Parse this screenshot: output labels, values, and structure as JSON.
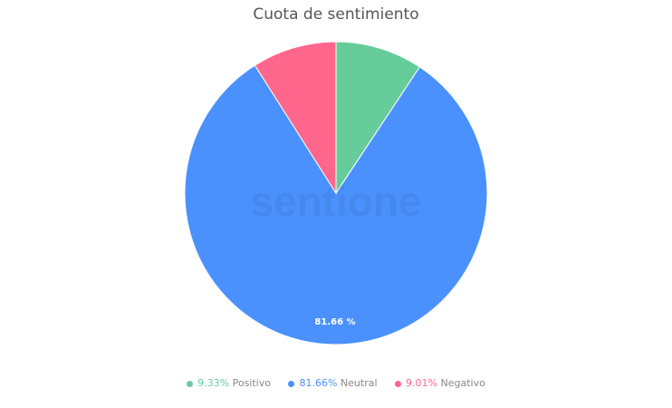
{
  "chart_data": {
    "type": "pie",
    "title": "Cuota de sentimiento",
    "categories": [
      "Positivo",
      "Neutral",
      "Negativo"
    ],
    "values": [
      9.33,
      81.66,
      9.01
    ],
    "value_labels": [
      "9.33%",
      "81.66%",
      "9.01%"
    ],
    "slice_label": "81.66 %",
    "colors": [
      "#66cc99",
      "#4b91fd",
      "#ff668c"
    ],
    "legend_position": "bottom",
    "start_angle": "top, clockwise"
  },
  "watermark": "sentione"
}
